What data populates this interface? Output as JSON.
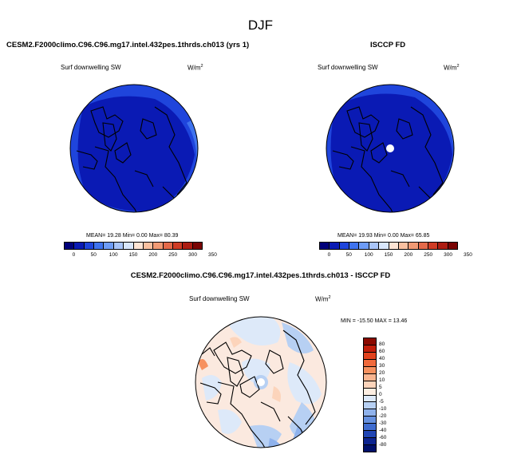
{
  "season": "DJF",
  "panels": {
    "model": {
      "title": "CESM2.F2000climo.C96.C96.mg17.intel.432pes.1thrds.ch013 (yrs 1)",
      "variable": "Surf downwelling SW",
      "units": "W/m",
      "units_exp": "2",
      "stats": "MEAN= 19.28  Min= 0.00  Max= 80.39"
    },
    "obs": {
      "title": "ISCCP FD",
      "variable": "Surf downwelling SW",
      "units": "W/m",
      "units_exp": "2",
      "stats": "MEAN= 19.93  Min= 0.00  Max= 65.85"
    },
    "diff": {
      "title": "CESM2.F2000climo.C96.C96.mg17.intel.432pes.1thrds.ch013 - ISCCP FD",
      "variable": "Surf downwelling SW",
      "units": "W/m",
      "units_exp": "2",
      "stats": "MIN = -15.50 MAX = 13.46"
    }
  },
  "colorbar_abs": {
    "ticks": [
      "0",
      "50",
      "100",
      "150",
      "200",
      "250",
      "300",
      "350"
    ],
    "colors": [
      "#00007a",
      "#0a1ab4",
      "#1f45dc",
      "#3f73ee",
      "#6e9cf6",
      "#a9c5f9",
      "#d8e6fb",
      "#fde4d4",
      "#f9c0a0",
      "#f19a74",
      "#e46a4a",
      "#cf3c25",
      "#ad1d12",
      "#7a0403"
    ]
  },
  "colorbar_diff": {
    "ticks": [
      "80",
      "60",
      "40",
      "30",
      "20",
      "10",
      "5",
      "0",
      "-5",
      "-10",
      "-20",
      "-30",
      "-40",
      "-60",
      "-80"
    ],
    "colors": [
      "#8b0a00",
      "#c21e0a",
      "#e2431e",
      "#f06a3c",
      "#f6915f",
      "#f9b590",
      "#fcd4bb",
      "#fdeee2",
      "#dde9f9",
      "#b7d0f3",
      "#8fb2ec",
      "#6691e0",
      "#3f6cd0",
      "#2045b4",
      "#0d2490",
      "#00106b"
    ]
  }
}
